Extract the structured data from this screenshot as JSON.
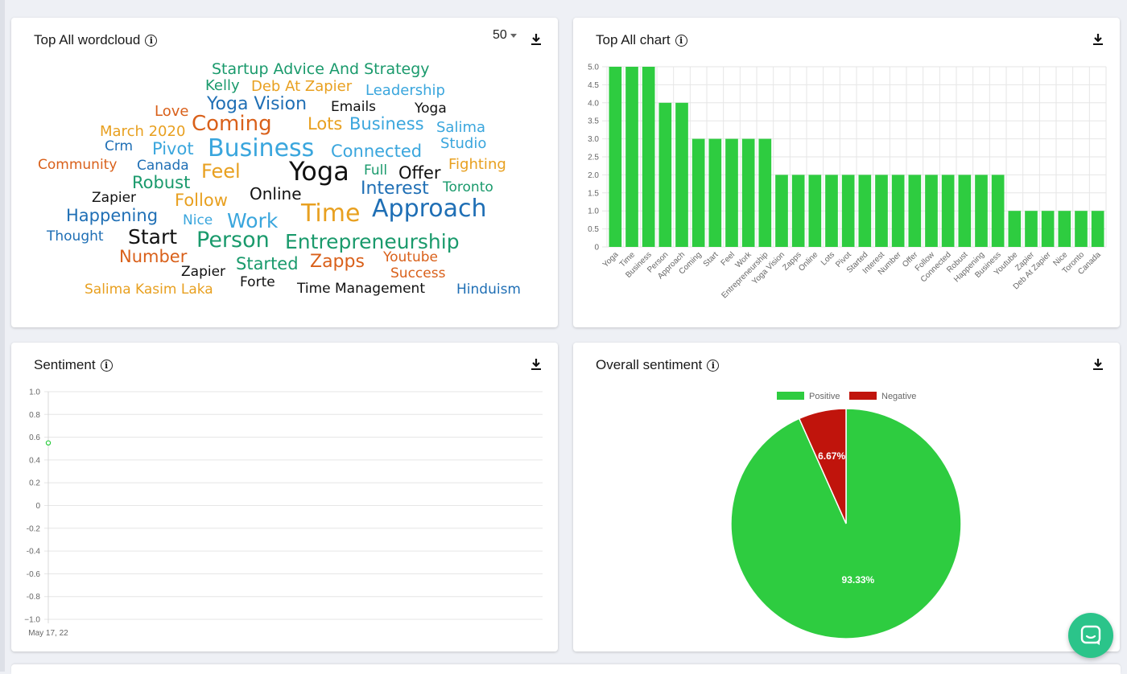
{
  "wordcloud_card": {
    "title": "Top All wordcloud",
    "count_select": "50",
    "words": [
      {
        "text": "Startup Advice And Strategy",
        "color": "#1a9a6c"
      },
      {
        "text": "Kelly",
        "color": "#1a9a6c"
      },
      {
        "text": "Deb At Zapier",
        "color": "#e8a020"
      },
      {
        "text": "Leadership",
        "color": "#3aa6dd"
      },
      {
        "text": "Love",
        "color": "#d9601a"
      },
      {
        "text": "Yoga Vision",
        "color": "#1f6fb5"
      },
      {
        "text": "Emails",
        "color": "#111111"
      },
      {
        "text": "Yoga",
        "color": "#111111"
      },
      {
        "text": "March 2020",
        "color": "#e8a020"
      },
      {
        "text": "Coming",
        "color": "#d9601a"
      },
      {
        "text": "Lots",
        "color": "#e8a020"
      },
      {
        "text": "Business",
        "color": "#3aa6dd"
      },
      {
        "text": "Salima",
        "color": "#3aa6dd"
      },
      {
        "text": "Crm",
        "color": "#1f6fb5"
      },
      {
        "text": "Pivot",
        "color": "#3aa6dd"
      },
      {
        "text": "Business",
        "color": "#3aa6dd"
      },
      {
        "text": "Connected",
        "color": "#3aa6dd"
      },
      {
        "text": "Studio",
        "color": "#3aa6dd"
      },
      {
        "text": "Community",
        "color": "#d9601a"
      },
      {
        "text": "Canada",
        "color": "#1f6fb5"
      },
      {
        "text": "Feel",
        "color": "#e8a020"
      },
      {
        "text": "Yoga",
        "color": "#111111"
      },
      {
        "text": "Full",
        "color": "#1a9a6c"
      },
      {
        "text": "Offer",
        "color": "#111111"
      },
      {
        "text": "Fighting",
        "color": "#e8a020"
      },
      {
        "text": "Robust",
        "color": "#1a9a6c"
      },
      {
        "text": "Zapier",
        "color": "#111111"
      },
      {
        "text": "Follow",
        "color": "#e8a020"
      },
      {
        "text": "Online",
        "color": "#111111"
      },
      {
        "text": "Interest",
        "color": "#1f6fb5"
      },
      {
        "text": "Toronto",
        "color": "#1a9a6c"
      },
      {
        "text": "Happening",
        "color": "#1f6fb5"
      },
      {
        "text": "Nice",
        "color": "#3aa6dd"
      },
      {
        "text": "Work",
        "color": "#3aa6dd"
      },
      {
        "text": "Time",
        "color": "#e8a020"
      },
      {
        "text": "Approach",
        "color": "#1f6fb5"
      },
      {
        "text": "Thought",
        "color": "#1f6fb5"
      },
      {
        "text": "Start",
        "color": "#111111"
      },
      {
        "text": "Person",
        "color": "#1a9a6c"
      },
      {
        "text": "Entrepreneurship",
        "color": "#1a9a6c"
      },
      {
        "text": "Number",
        "color": "#d9601a"
      },
      {
        "text": "Zapier",
        "color": "#111111"
      },
      {
        "text": "Started",
        "color": "#1a9a6c"
      },
      {
        "text": "Zapps",
        "color": "#d9601a"
      },
      {
        "text": "Youtube",
        "color": "#d9601a"
      },
      {
        "text": "Success",
        "color": "#d9601a"
      },
      {
        "text": "Forte",
        "color": "#111111"
      },
      {
        "text": "Salima Kasim Laka",
        "color": "#e8a020"
      },
      {
        "text": "Time Management",
        "color": "#111111"
      },
      {
        "text": "Hinduism",
        "color": "#1f6fb5"
      }
    ]
  },
  "bar_card": {
    "title": "Top All chart"
  },
  "sentiment_card": {
    "title": "Sentiment"
  },
  "overall_card": {
    "title": "Overall sentiment"
  },
  "colors": {
    "bar_green": "#2ecc40",
    "negative_red": "#c0140c",
    "chat": "#2bc48a"
  },
  "chart_data": [
    {
      "type": "bar",
      "categories": [
        "Yoga",
        "Time",
        "Business",
        "Person",
        "Approach",
        "Coming",
        "Start",
        "Feel",
        "Work",
        "Entrepreneurship",
        "Yoga Vision",
        "Zapps",
        "Online",
        "Lots",
        "Pivot",
        "Started",
        "Interest",
        "Number",
        "Offer",
        "Follow",
        "Connected",
        "Robust",
        "Happening",
        "Business",
        "Youtube",
        "Zapier",
        "Deb At Zapier",
        "Nice",
        "Toronto",
        "Canada"
      ],
      "values": [
        5,
        5,
        5,
        4,
        4,
        3,
        3,
        3,
        3,
        3,
        2,
        2,
        2,
        2,
        2,
        2,
        2,
        2,
        2,
        2,
        2,
        2,
        2,
        2,
        1,
        1,
        1,
        1,
        1,
        1
      ],
      "ylim": [
        0,
        5
      ],
      "yticks": [
        "0",
        "0.5",
        "1.0",
        "1.5",
        "2.0",
        "2.5",
        "3.0",
        "3.5",
        "4.0",
        "4.5",
        "5.0"
      ],
      "grid": true
    },
    {
      "type": "line",
      "x": [
        "May 17, 22"
      ],
      "y": [
        0.55
      ],
      "ylim": [
        -1,
        1
      ],
      "yticks": [
        "1.0",
        "0.8",
        "0.6",
        "0.4",
        "0.2",
        "0",
        "-0.2",
        "-0.4",
        "-0.6",
        "-0.8",
        "−1.0"
      ],
      "grid": true
    },
    {
      "type": "pie",
      "legend": "top",
      "slices": [
        {
          "name": "Positive",
          "value": 93.33,
          "label": "93.33%",
          "color": "#2ecc40"
        },
        {
          "name": "Negative",
          "value": 6.67,
          "label": "6.67%",
          "color": "#c0140c"
        }
      ]
    }
  ]
}
